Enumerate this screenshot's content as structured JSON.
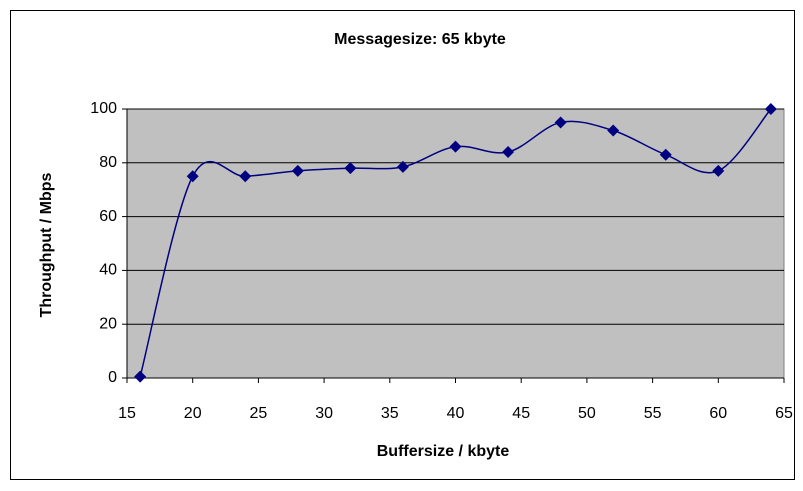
{
  "chart_data": {
    "type": "line",
    "title": "Messagesize: 65 kbyte",
    "xlabel": "Buffersize / kbyte",
    "ylabel": "Throughput / Mbps",
    "x": [
      16,
      20,
      24,
      28,
      32,
      36,
      40,
      44,
      48,
      52,
      56,
      60,
      64
    ],
    "series": [
      {
        "name": "Throughput",
        "color": "#000080",
        "values": [
          0.5,
          75,
          75,
          77,
          78,
          78.5,
          86,
          84,
          95,
          92,
          83,
          77,
          100
        ]
      }
    ],
    "xlim": [
      15,
      65
    ],
    "xticks": [
      15,
      20,
      25,
      30,
      35,
      40,
      45,
      50,
      55,
      60,
      65
    ],
    "ylim": [
      0,
      100
    ],
    "yticks": [
      0,
      20,
      40,
      60,
      80,
      100
    ],
    "grid": true,
    "plot_background": "#c0c0c0",
    "smooth": true
  }
}
